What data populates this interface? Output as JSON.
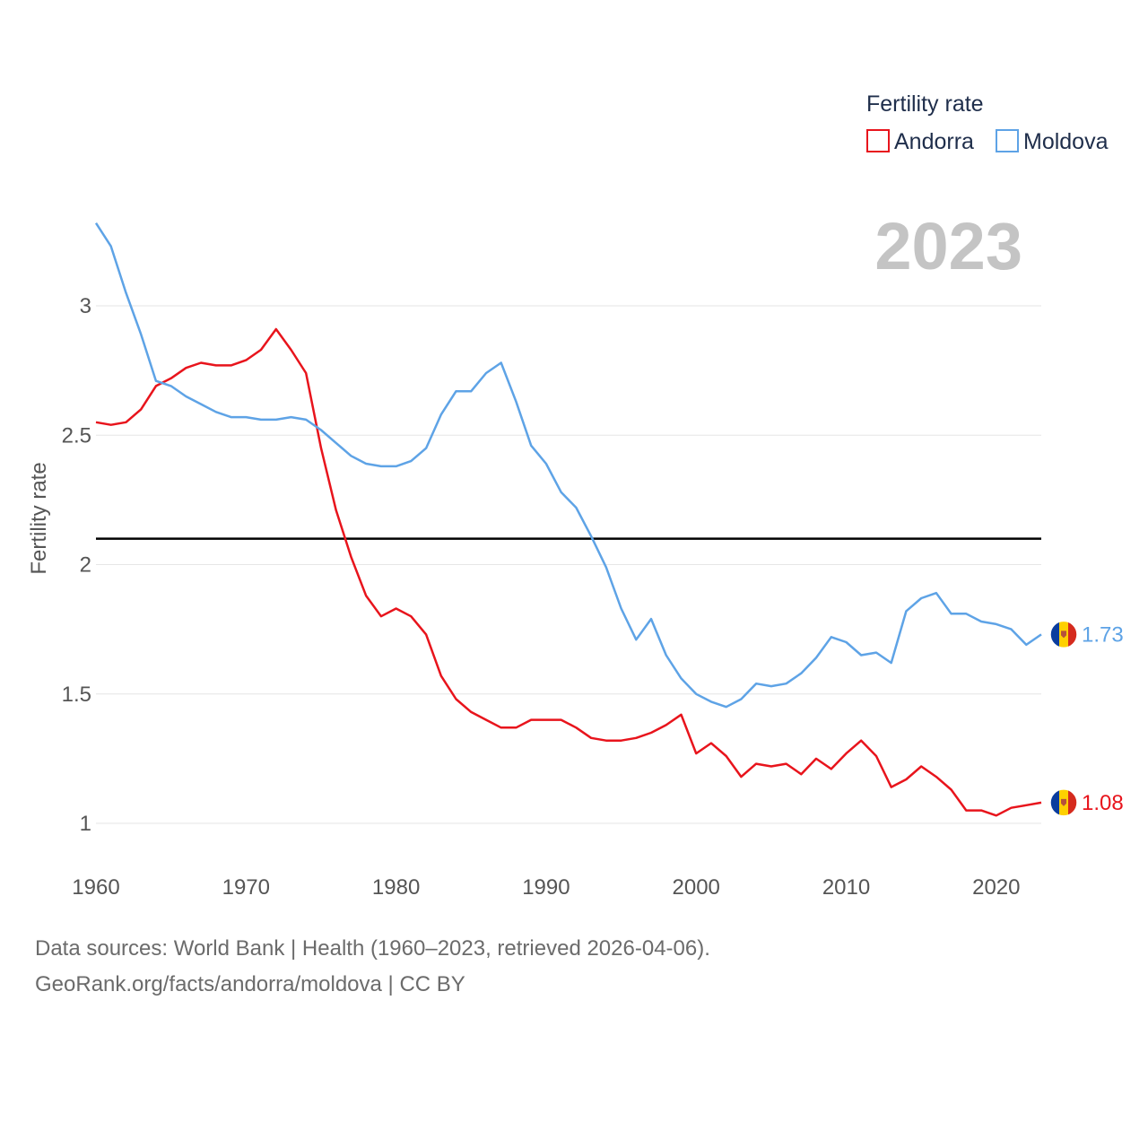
{
  "chart_data": {
    "type": "line",
    "legend_title": "Fertility rate",
    "legend_position": "top-right",
    "ylabel": "Fertility rate",
    "xlabel": "",
    "current_year_label": "2023",
    "xlim": [
      1960,
      2023
    ],
    "ylim": [
      0.8,
      3.33
    ],
    "x_ticks": [
      1960,
      1970,
      1980,
      1990,
      2000,
      2010,
      2020
    ],
    "y_ticks": [
      1,
      1.5,
      2,
      2.5,
      3
    ],
    "y_tick_labels": [
      "1",
      "1.5",
      "2",
      "2.5",
      "3"
    ],
    "reference_line": {
      "value": 2.1,
      "color": "#000000"
    },
    "x": [
      1960,
      1961,
      1962,
      1963,
      1964,
      1965,
      1966,
      1967,
      1968,
      1969,
      1970,
      1971,
      1972,
      1973,
      1974,
      1975,
      1976,
      1977,
      1978,
      1979,
      1980,
      1981,
      1982,
      1983,
      1984,
      1985,
      1986,
      1987,
      1988,
      1989,
      1990,
      1991,
      1992,
      1993,
      1994,
      1995,
      1996,
      1997,
      1998,
      1999,
      2000,
      2001,
      2002,
      2003,
      2004,
      2005,
      2006,
      2007,
      2008,
      2009,
      2010,
      2011,
      2012,
      2013,
      2014,
      2015,
      2016,
      2017,
      2018,
      2019,
      2020,
      2021,
      2022,
      2023
    ],
    "series": [
      {
        "name": "Andorra",
        "color": "#e8141c",
        "end_label": "1.08",
        "values": [
          2.55,
          2.54,
          2.55,
          2.6,
          2.69,
          2.72,
          2.76,
          2.78,
          2.77,
          2.77,
          2.79,
          2.83,
          2.91,
          2.83,
          2.74,
          2.45,
          2.21,
          2.03,
          1.88,
          1.8,
          1.83,
          1.8,
          1.73,
          1.57,
          1.48,
          1.43,
          1.4,
          1.37,
          1.37,
          1.4,
          1.4,
          1.4,
          1.37,
          1.33,
          1.32,
          1.32,
          1.33,
          1.35,
          1.38,
          1.42,
          1.27,
          1.31,
          1.26,
          1.18,
          1.23,
          1.22,
          1.23,
          1.19,
          1.25,
          1.21,
          1.27,
          1.32,
          1.26,
          1.14,
          1.17,
          1.22,
          1.18,
          1.13,
          1.05,
          1.05,
          1.03,
          1.06,
          1.07,
          1.08
        ]
      },
      {
        "name": "Moldova",
        "color": "#5ea3e6",
        "end_label": "1.73",
        "values": [
          3.32,
          3.23,
          3.05,
          2.89,
          2.71,
          2.69,
          2.65,
          2.62,
          2.59,
          2.57,
          2.57,
          2.56,
          2.56,
          2.57,
          2.56,
          2.52,
          2.47,
          2.42,
          2.39,
          2.38,
          2.38,
          2.4,
          2.45,
          2.58,
          2.67,
          2.67,
          2.74,
          2.78,
          2.63,
          2.46,
          2.39,
          2.28,
          2.22,
          2.11,
          1.99,
          1.83,
          1.71,
          1.79,
          1.65,
          1.56,
          1.5,
          1.47,
          1.45,
          1.48,
          1.54,
          1.53,
          1.54,
          1.58,
          1.64,
          1.72,
          1.7,
          1.65,
          1.66,
          1.62,
          1.82,
          1.87,
          1.89,
          1.81,
          1.81,
          1.78,
          1.77,
          1.75,
          1.69,
          1.73
        ]
      }
    ]
  },
  "footer": {
    "source": "Data sources: World Bank | Health (1960–2023, retrieved 2026-04-06).",
    "url": "GeoRank.org/facts/andorra/moldova | CC BY"
  },
  "icons": {
    "andorra_marker": "andorra-flag-icon",
    "moldova_marker": "moldova-flag-icon"
  }
}
